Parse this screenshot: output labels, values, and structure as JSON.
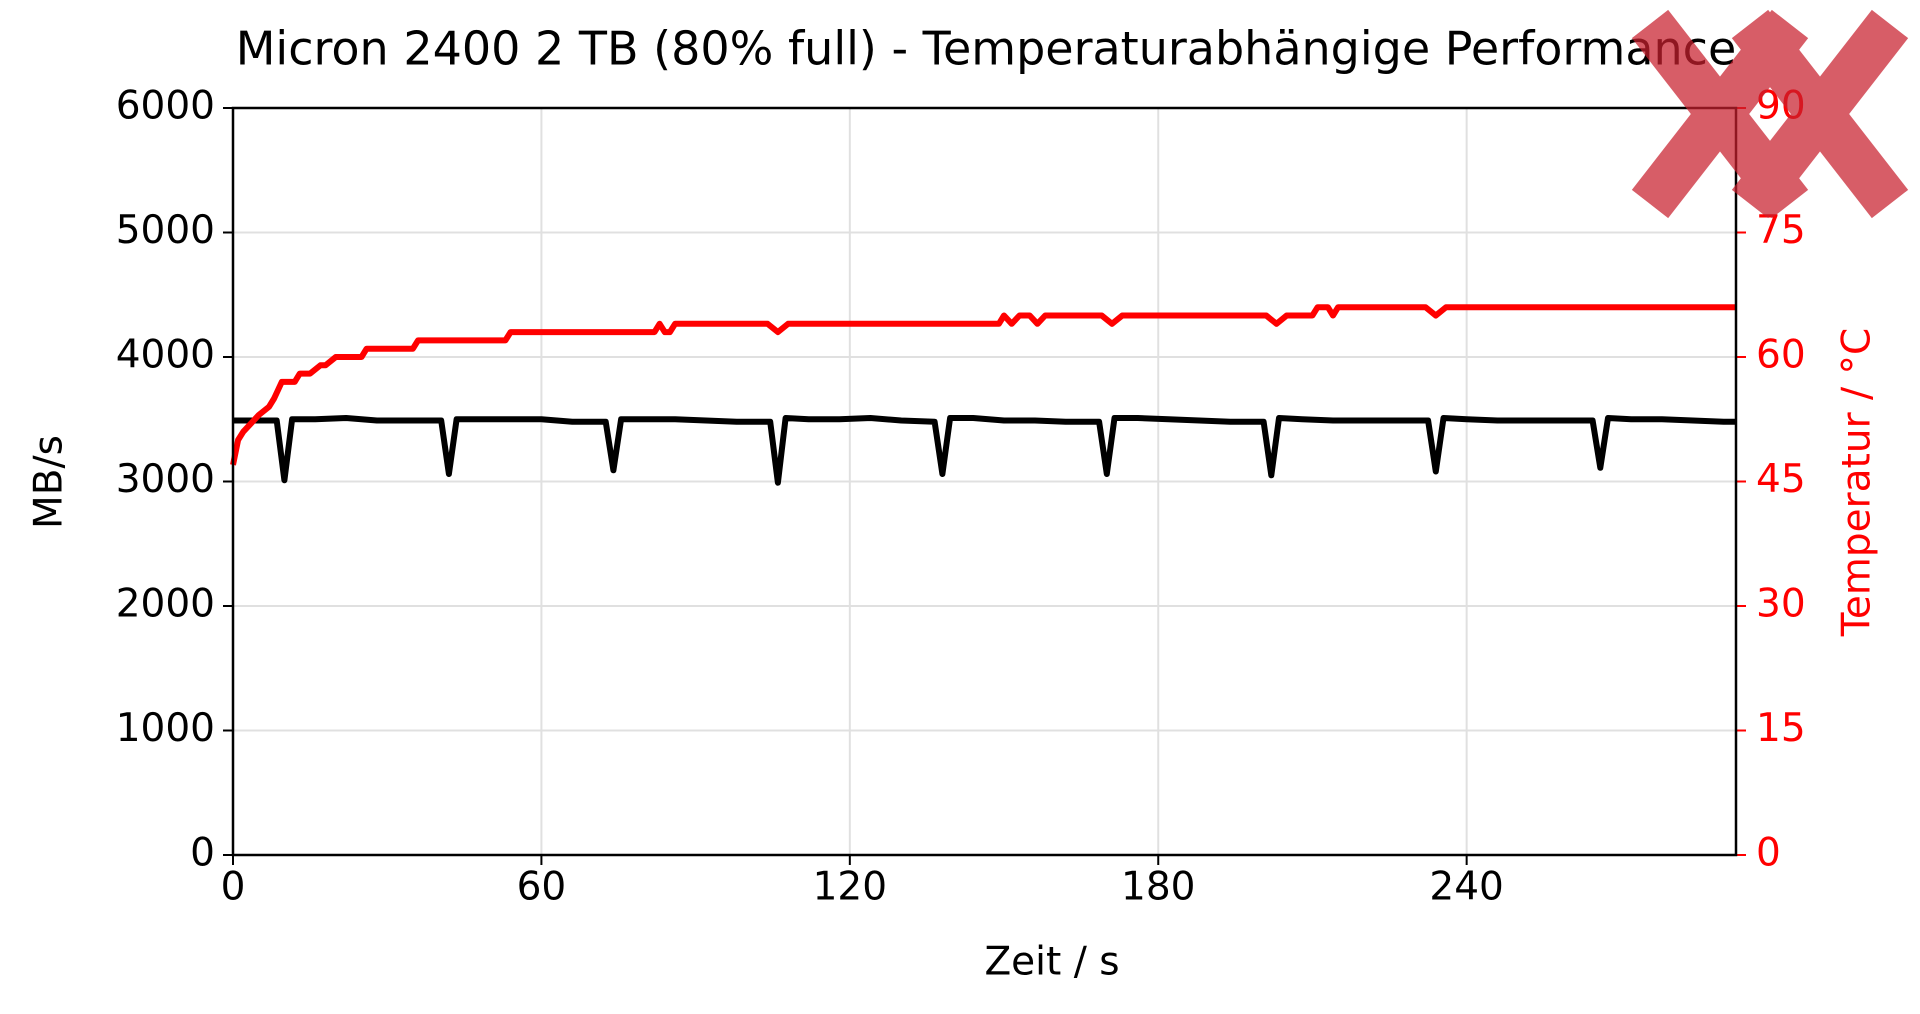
{
  "chart_data": {
    "type": "line",
    "title": "Micron 2400 2 TB (80% full) - Temperaturabhängige Performance",
    "xlabel": "Zeit / s",
    "ylabel": "MB/s",
    "y2label": "Temperatur / °C",
    "xlim": [
      0,
      292.4
    ],
    "xticks": [
      0,
      60,
      120,
      180,
      240
    ],
    "ylim": [
      0,
      6000
    ],
    "yticks": [
      0,
      1000,
      2000,
      3000,
      4000,
      5000,
      6000
    ],
    "y2lim": [
      0,
      90
    ],
    "y2ticks": [
      0,
      15,
      30,
      45,
      60,
      75,
      90
    ],
    "grid": true,
    "y2color": "#ff0000",
    "series": [
      {
        "color": "#000000",
        "axis": "y",
        "x": [
          0,
          3,
          6,
          8.5,
          10,
          11.5,
          16,
          22,
          28,
          34,
          40.5,
          42,
          43.5,
          48,
          54,
          60,
          66,
          72.5,
          74,
          75.5,
          80,
          86,
          92,
          98,
          104.5,
          106,
          107.5,
          112,
          118,
          124,
          130,
          136.5,
          138,
          139.5,
          144,
          150,
          156,
          162,
          168.5,
          170,
          171.5,
          176,
          182,
          188,
          194,
          200.5,
          202,
          203.5,
          208,
          214,
          220,
          226,
          232.5,
          234,
          235.5,
          240,
          246,
          252,
          258,
          264.5,
          266,
          267.5,
          272,
          278,
          284,
          290,
          292.4
        ],
        "values": [
          3490,
          3490,
          3490,
          3490,
          3010,
          3500,
          3500,
          3510,
          3490,
          3490,
          3490,
          3060,
          3500,
          3500,
          3500,
          3500,
          3480,
          3480,
          3090,
          3500,
          3500,
          3500,
          3490,
          3480,
          3480,
          2990,
          3510,
          3500,
          3500,
          3510,
          3490,
          3480,
          3060,
          3510,
          3510,
          3490,
          3490,
          3480,
          3480,
          3060,
          3510,
          3510,
          3500,
          3490,
          3480,
          3480,
          3050,
          3510,
          3500,
          3490,
          3490,
          3490,
          3490,
          3080,
          3510,
          3500,
          3490,
          3490,
          3490,
          3490,
          3110,
          3510,
          3500,
          3500,
          3490,
          3480,
          3480
        ]
      },
      {
        "color": "#ff0000",
        "axis": "y2",
        "x": [
          0,
          1,
          2,
          3.5,
          5,
          7,
          8,
          9.5,
          12,
          13,
          15,
          17,
          18,
          20,
          25,
          26,
          35,
          36,
          53,
          54,
          82,
          83,
          84,
          85,
          86,
          104,
          106,
          108,
          149,
          150,
          151.5,
          153,
          155,
          156.5,
          158,
          159,
          169,
          171,
          173,
          201,
          203,
          205,
          209,
          210,
          211,
          213,
          214,
          215,
          217,
          232,
          234,
          236,
          292.4
        ],
        "values": [
          47,
          50,
          51,
          52,
          53,
          54,
          55,
          57,
          57,
          58,
          58,
          59,
          59,
          60,
          60,
          61,
          61,
          62,
          62,
          63,
          63,
          64,
          63,
          63,
          64,
          64,
          63,
          64,
          64,
          65,
          64,
          65,
          65,
          64,
          65,
          65,
          65,
          64,
          65,
          65,
          64,
          65,
          65,
          65,
          66,
          66,
          65,
          66,
          66,
          66,
          65,
          66,
          66
        ]
      }
    ]
  }
}
